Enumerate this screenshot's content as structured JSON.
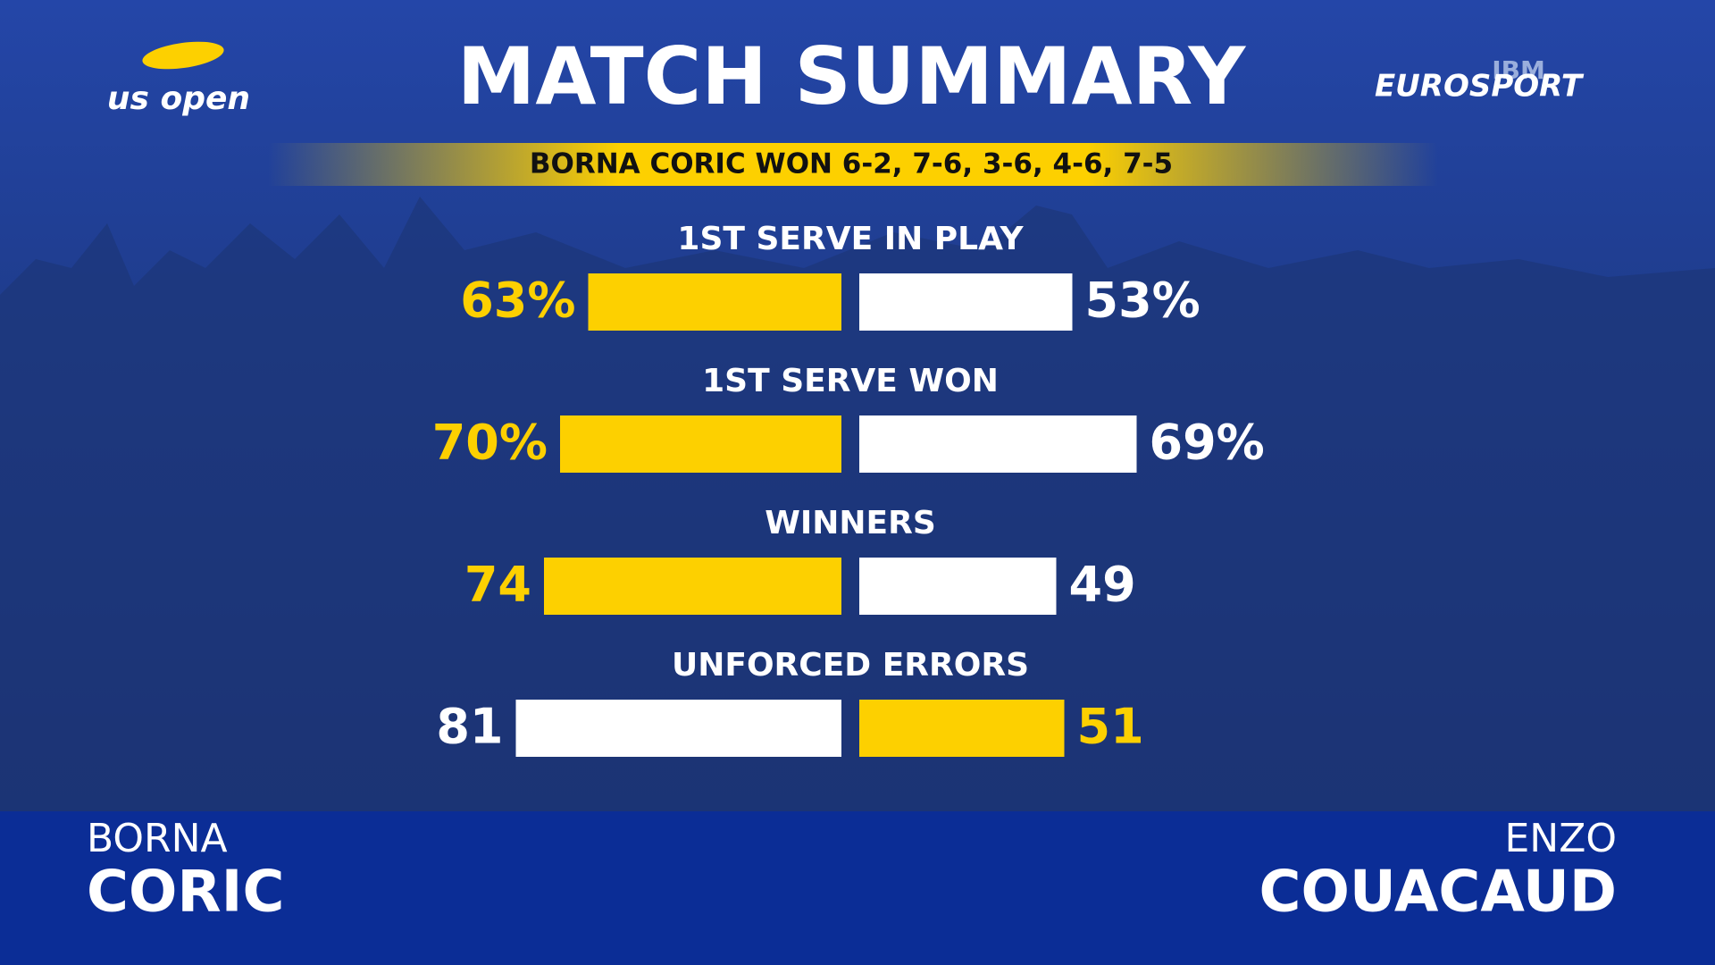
{
  "header": {
    "brand": "us open",
    "title": "MATCH SUMMARY",
    "sponsor": "IBM",
    "broadcaster": "EUROSPORT",
    "result": "BORNA CORIC WON 6-2, 7-6, 3-6, 4-6, 7-5"
  },
  "stats": [
    {
      "label": "1ST SERVE IN PLAY",
      "values": [
        63,
        53
      ],
      "value_labels": [
        "63%",
        "53%"
      ],
      "colors": [
        "#fdd000",
        "#ffffff"
      ]
    },
    {
      "label": "1ST SERVE WON",
      "values": [
        70,
        69
      ],
      "value_labels": [
        "70%",
        "69%"
      ],
      "colors": [
        "#fdd000",
        "#ffffff"
      ]
    },
    {
      "label": "WINNERS",
      "values": [
        74,
        49
      ],
      "colors": [
        "#fdd000",
        "#ffffff"
      ]
    },
    {
      "label": "UNFORCED ERRORS",
      "values": [
        81,
        51
      ],
      "colors": [
        "#ffffff",
        "#fdd000"
      ]
    }
  ],
  "players": [
    {
      "first": "BORNA",
      "last": "CORIC"
    },
    {
      "first": "ENZO",
      "last": "COUACAUD"
    }
  ]
}
